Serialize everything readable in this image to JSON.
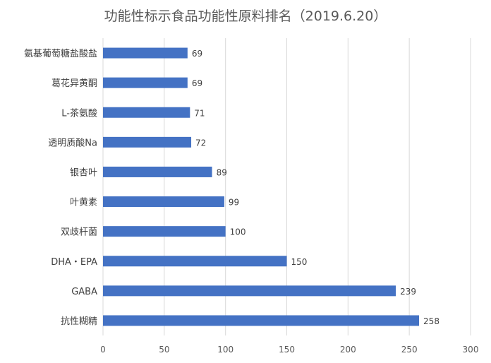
{
  "chart_data": {
    "type": "bar",
    "orientation": "horizontal",
    "title": "功能性标示食品功能性原料排名（2019.6.20）",
    "categories": [
      "氨基葡萄糖盐酸盐",
      "葛花异黄酮",
      "L-茶氨酸",
      "透明质酸Na",
      "银杏叶",
      "叶黄素",
      "双歧杆菌",
      "DHA・EPA",
      "GABA",
      "抗性糊精"
    ],
    "values": [
      69,
      69,
      71,
      72,
      89,
      99,
      100,
      150,
      239,
      258
    ],
    "xlim": [
      0,
      300
    ],
    "xticks": [
      "0",
      "50",
      "100",
      "150",
      "200",
      "250",
      "300"
    ],
    "xlabel": "",
    "ylabel": "",
    "grid": "vertical",
    "bar_color": "#4472c4",
    "grid_color": "#d9d9d9"
  }
}
